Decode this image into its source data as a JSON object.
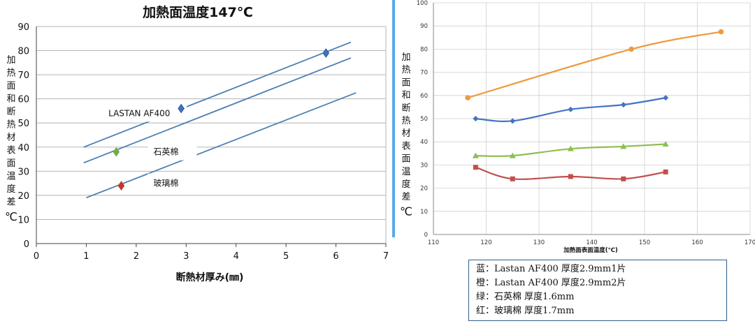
{
  "chart_data": [
    {
      "type": "scatter",
      "title": "加熱面温度147℃",
      "xlabel": "断熱材厚み(㎜)",
      "ylabel": "加热面和断热材表面温度差℃",
      "xlim": [
        0,
        7
      ],
      "ylim": [
        0,
        90
      ],
      "x_ticks": [
        "0",
        "1",
        "2",
        "3",
        "4",
        "5",
        "6",
        "7"
      ],
      "y_ticks": [
        "0",
        "10",
        "20",
        "30",
        "40",
        "50",
        "60",
        "70",
        "80",
        "90"
      ],
      "grid": true,
      "series": [
        {
          "name": "LASTAN AF400",
          "color": "#4472c4",
          "points": [
            [
              2.9,
              56
            ],
            [
              5.8,
              79
            ]
          ]
        },
        {
          "name": "石英棉",
          "color": "#70ad47",
          "points": [
            [
              1.6,
              38
            ]
          ]
        },
        {
          "name": "玻璃棉",
          "color": "#c0392b",
          "points": [
            [
              1.7,
              24
            ]
          ]
        }
      ],
      "trendlines": [
        {
          "color": "#4a7fb0",
          "from": [
            0.95,
            40
          ],
          "to": [
            6.3,
            83.5
          ]
        },
        {
          "color": "#4a7fb0",
          "from": [
            0.95,
            33.5
          ],
          "to": [
            6.3,
            77
          ]
        },
        {
          "color": "#4a7fb0",
          "from": [
            1.0,
            19
          ],
          "to": [
            6.4,
            62.5
          ]
        }
      ],
      "labels": [
        {
          "text": "LASTAN AF400",
          "x": 1.5,
          "y": 54
        },
        {
          "text": "石英棉",
          "x": 2.4,
          "y": 38
        },
        {
          "text": "玻璃棉",
          "x": 2.4,
          "y": 25
        }
      ]
    },
    {
      "type": "line",
      "title": "",
      "xlabel": "加熱面表面温度(℃)",
      "ylabel": "加热面和断热材表面温度差℃",
      "xlim": [
        110,
        170
      ],
      "ylim": [
        0,
        100
      ],
      "x_ticks": [
        "110",
        "120",
        "130",
        "140",
        "150",
        "160",
        "170"
      ],
      "y_ticks": [
        "0",
        "10",
        "20",
        "30",
        "40",
        "50",
        "60",
        "70",
        "80",
        "90",
        "100"
      ],
      "grid": true,
      "series": [
        {
          "name": "蓝",
          "color": "#4472c4",
          "marker": "diamond",
          "points": [
            [
              118,
              50
            ],
            [
              125,
              49
            ],
            [
              136,
              54
            ],
            [
              146,
              56
            ],
            [
              154,
              59
            ]
          ]
        },
        {
          "name": "橙",
          "color": "#ed9b40",
          "marker": "circle",
          "points": [
            [
              116.5,
              59
            ],
            [
              147.5,
              80
            ],
            [
              164.5,
              87.5
            ]
          ]
        },
        {
          "name": "绿",
          "color": "#8cbf4f",
          "marker": "triangle",
          "points": [
            [
              118,
              34
            ],
            [
              125,
              34
            ],
            [
              136,
              37
            ],
            [
              146,
              38
            ],
            [
              154,
              39
            ]
          ]
        },
        {
          "name": "红",
          "color": "#c0504d",
          "marker": "square",
          "points": [
            [
              118,
              29
            ],
            [
              125,
              24
            ],
            [
              136,
              25
            ],
            [
              146,
              24
            ],
            [
              154,
              27
            ]
          ]
        }
      ]
    }
  ],
  "legend": {
    "lines": [
      "蓝：Lastan AF400 厚度2.9mm1片",
      "橙：Lastan AF400 厚度2.9mm2片",
      "绿：石英棉 厚度1.6mm",
      "红：玻璃棉 厚度1.7mm"
    ]
  }
}
